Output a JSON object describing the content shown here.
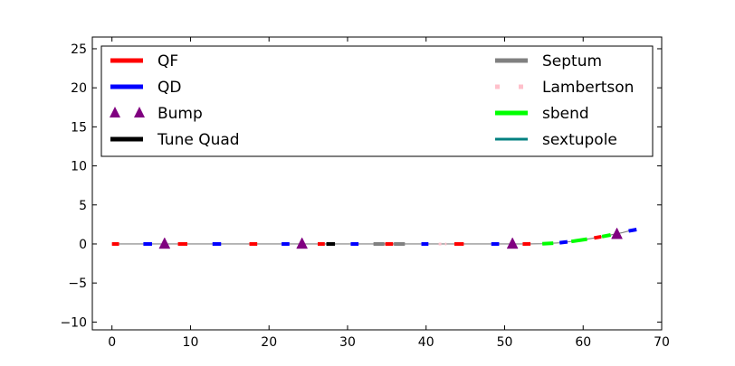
{
  "chart_data": {
    "type": "line",
    "title": "",
    "xlabel": "",
    "ylabel": "",
    "xlim": [
      -2.5,
      70
    ],
    "ylim": [
      -11,
      26.5
    ],
    "xticks": [
      0,
      10,
      20,
      30,
      40,
      50,
      60,
      70
    ],
    "yticks": [
      -10,
      -5,
      0,
      5,
      10,
      15,
      20,
      25
    ],
    "ytick_labels": [
      "−10",
      "−5",
      "0",
      "5",
      "10",
      "15",
      "20",
      "25"
    ],
    "grid": false,
    "legend_position": "top",
    "beamline": {
      "name": "",
      "color": "#808080",
      "points": [
        [
          0,
          0
        ],
        [
          53,
          0
        ],
        [
          55,
          0.03
        ],
        [
          57,
          0.15
        ],
        [
          59,
          0.38
        ],
        [
          61,
          0.7
        ],
        [
          63,
          1.05
        ],
        [
          65,
          1.45
        ],
        [
          66.5,
          1.85
        ]
      ]
    },
    "series": [
      {
        "name": "QF",
        "style": "dash",
        "color": "#ff0000",
        "segments": [
          [
            0,
            0.9
          ],
          [
            8.4,
            9.6
          ],
          [
            17.5,
            18.5
          ],
          [
            26.2,
            27.1
          ],
          [
            34.8,
            35.8
          ],
          [
            43.6,
            44.8
          ],
          [
            52.3,
            53.3
          ],
          [
            61.4,
            62.3
          ]
        ]
      },
      {
        "name": "QD",
        "style": "dash",
        "color": "#0000ff",
        "segments": [
          [
            4.0,
            5.1
          ],
          [
            12.8,
            13.9
          ],
          [
            21.6,
            22.6
          ],
          [
            30.4,
            31.4
          ],
          [
            39.4,
            40.3
          ],
          [
            48.3,
            49.3
          ],
          [
            57.0,
            58.0
          ],
          [
            65.8,
            66.8
          ]
        ]
      },
      {
        "name": "Bump",
        "style": "triangle",
        "color": "#800080",
        "points": [
          [
            6.7,
            0
          ],
          [
            24.2,
            0
          ],
          [
            51.0,
            0
          ],
          [
            64.3,
            1.25
          ]
        ]
      },
      {
        "name": "Tune Quad",
        "style": "dash",
        "color": "#000000",
        "segments": [
          [
            27.3,
            28.4
          ]
        ]
      },
      {
        "name": "Septum",
        "style": "dash",
        "color": "#808080",
        "segments": [
          [
            33.3,
            34.7
          ],
          [
            35.9,
            37.3
          ]
        ]
      },
      {
        "name": "Lambertson",
        "style": "dot",
        "color": "#ffc0cb",
        "segments": [
          [
            41.6,
            42.6
          ]
        ]
      },
      {
        "name": "sbend",
        "style": "dash",
        "color": "#00ff00",
        "segments": [
          [
            54.8,
            56.2
          ],
          [
            58.5,
            60.5
          ],
          [
            62.4,
            63.5
          ]
        ]
      },
      {
        "name": "sextupole",
        "style": "line",
        "color": "#008080",
        "segments": []
      }
    ]
  }
}
